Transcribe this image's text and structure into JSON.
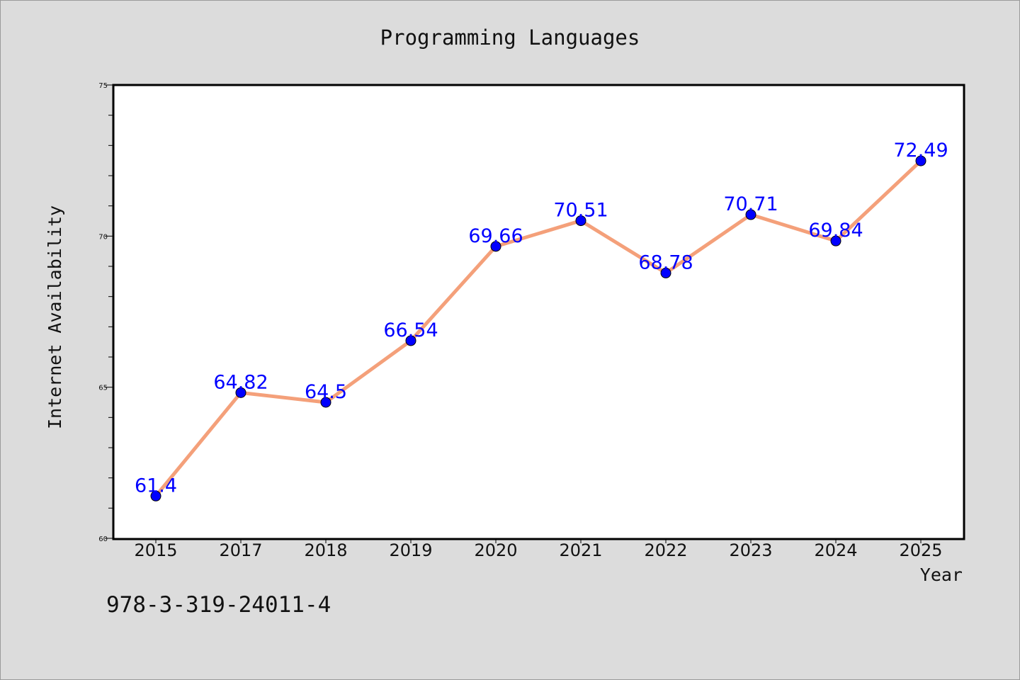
{
  "chart_data": {
    "type": "line",
    "title": "Programming Languages",
    "xlabel": "Year",
    "ylabel": "Internet Availability",
    "categories": [
      "2015",
      "2017",
      "2018",
      "2019",
      "2020",
      "2021",
      "2022",
      "2023",
      "2024",
      "2025"
    ],
    "series": [
      {
        "values": [
          61.4,
          64.82,
          64.5,
          66.54,
          69.66,
          70.51,
          68.78,
          70.71,
          69.84,
          72.49
        ],
        "data_labels": [
          "61.4",
          "64.82",
          "64.5",
          "66.54",
          "69.66",
          "70.51",
          "68.78",
          "70.71",
          "69.84",
          "72.49"
        ],
        "line_color": "#f4a07a",
        "marker_color": "#0000ff"
      }
    ],
    "ylim": [
      60,
      75
    ],
    "yticks": [
      "60",
      "65",
      "70",
      "75"
    ],
    "grid": false,
    "legend": "none",
    "label_color": "#0000ff",
    "background_color": "#dcdcdc"
  },
  "footnote": "978-3-319-24011-4"
}
